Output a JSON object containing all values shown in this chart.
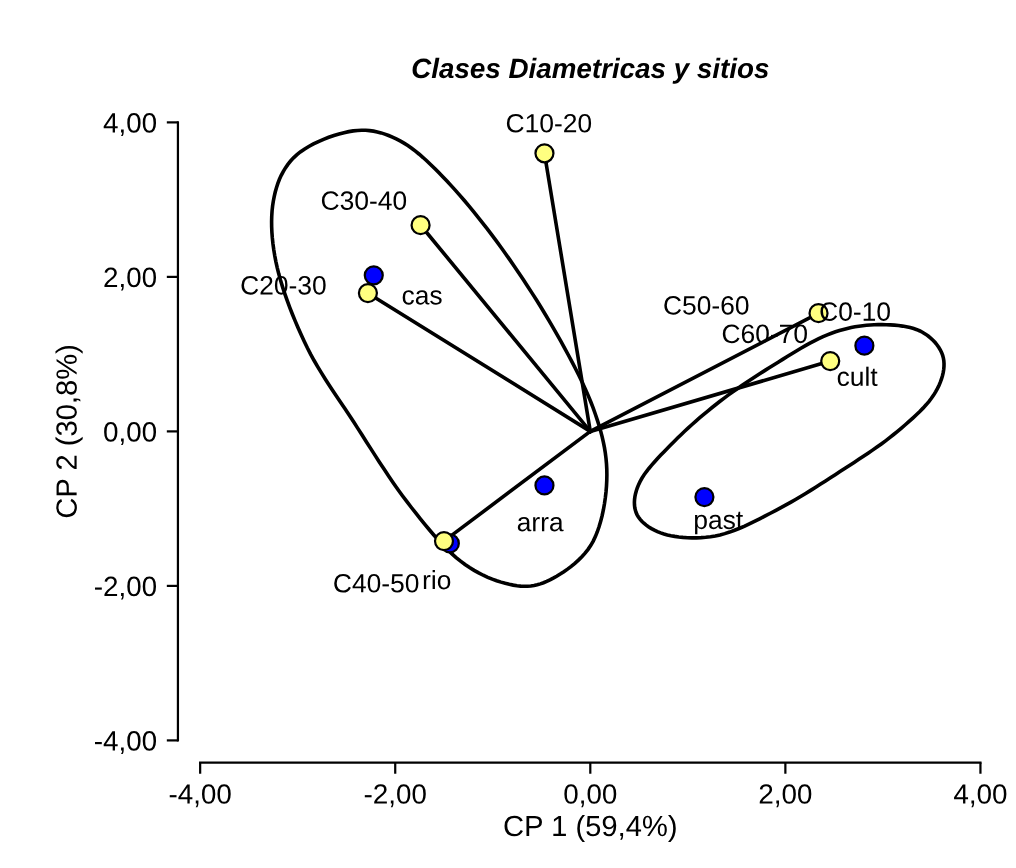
{
  "chart_data": {
    "type": "scatter",
    "title": "Clases Diametricas y sitios",
    "xlabel": "CP 1 (59,4%)",
    "ylabel": "CP 2 (30,8%)",
    "xlim": [
      -4,
      4
    ],
    "ylim": [
      -4,
      4
    ],
    "xticks": [
      {
        "value": -4,
        "label": "-4,00"
      },
      {
        "value": -2,
        "label": "-2,00"
      },
      {
        "value": 0,
        "label": "0,00"
      },
      {
        "value": 2,
        "label": "2,00"
      },
      {
        "value": 4,
        "label": "4,00"
      }
    ],
    "yticks": [
      {
        "value": -4,
        "label": "-4,00"
      },
      {
        "value": -2,
        "label": "-2,00"
      },
      {
        "value": 0,
        "label": "0,00"
      },
      {
        "value": 2,
        "label": "2,00"
      },
      {
        "value": 4,
        "label": "4,00"
      }
    ],
    "grid": false,
    "legend": false,
    "marker": "circle",
    "series": [
      {
        "type": "line",
        "marker": "none",
        "color": "#000000",
        "x": [
          0,
          -0.47
        ],
        "values": [
          0,
          3.6
        ]
      },
      {
        "type": "line",
        "marker": "none",
        "color": "#000000",
        "x": [
          0,
          -1.74
        ],
        "values": [
          0,
          2.67
        ]
      },
      {
        "type": "line",
        "marker": "none",
        "color": "#000000",
        "x": [
          0,
          -2.28
        ],
        "values": [
          0,
          1.79
        ]
      },
      {
        "type": "line",
        "marker": "none",
        "color": "#000000",
        "x": [
          -1.5,
          0,
          2.34
        ],
        "values": [
          -1.42,
          0,
          1.53
        ]
      },
      {
        "type": "line",
        "marker": "none",
        "color": "#000000",
        "x": [
          0,
          2.46
        ],
        "values": [
          0,
          0.91
        ]
      },
      {
        "color": "#0000ff",
        "x": [
          -2.22,
          -1.44,
          -0.47,
          1.17,
          2.81
        ],
        "values": [
          2.02,
          -1.45,
          -0.7,
          -0.85,
          1.11
        ]
      },
      {
        "color": "#ffff80",
        "x": [
          -0.47,
          -1.74,
          -2.28,
          -1.5,
          2.34,
          2.46
        ],
        "values": [
          3.6,
          2.67,
          1.79,
          -1.42,
          1.53,
          0.91
        ]
      }
    ],
    "annotations": [
      {
        "text": "cas",
        "x": -2.22,
        "y": 2.02
      },
      {
        "text": "rio",
        "x": -1.44,
        "y": -1.45
      },
      {
        "text": "arra",
        "x": -0.47,
        "y": -0.7
      },
      {
        "text": "past",
        "x": 1.17,
        "y": -0.85
      },
      {
        "text": "cult",
        "x": 2.81,
        "y": 1.11
      },
      {
        "text": "C10-20",
        "x": -0.47,
        "y": 3.6
      },
      {
        "text": "C30-40",
        "x": -1.74,
        "y": 2.67
      },
      {
        "text": "C20-30",
        "x": -2.28,
        "y": 1.79
      },
      {
        "text": "C40-50",
        "x": -1.5,
        "y": -1.42
      },
      {
        "text": "C50-60",
        "x": 2.34,
        "y": 1.53
      },
      {
        "text": "C0-10",
        "x": 2.46,
        "y": 0.91
      },
      {
        "text": "C60-70",
        "x": 2.46,
        "y": 0.91
      }
    ]
  }
}
